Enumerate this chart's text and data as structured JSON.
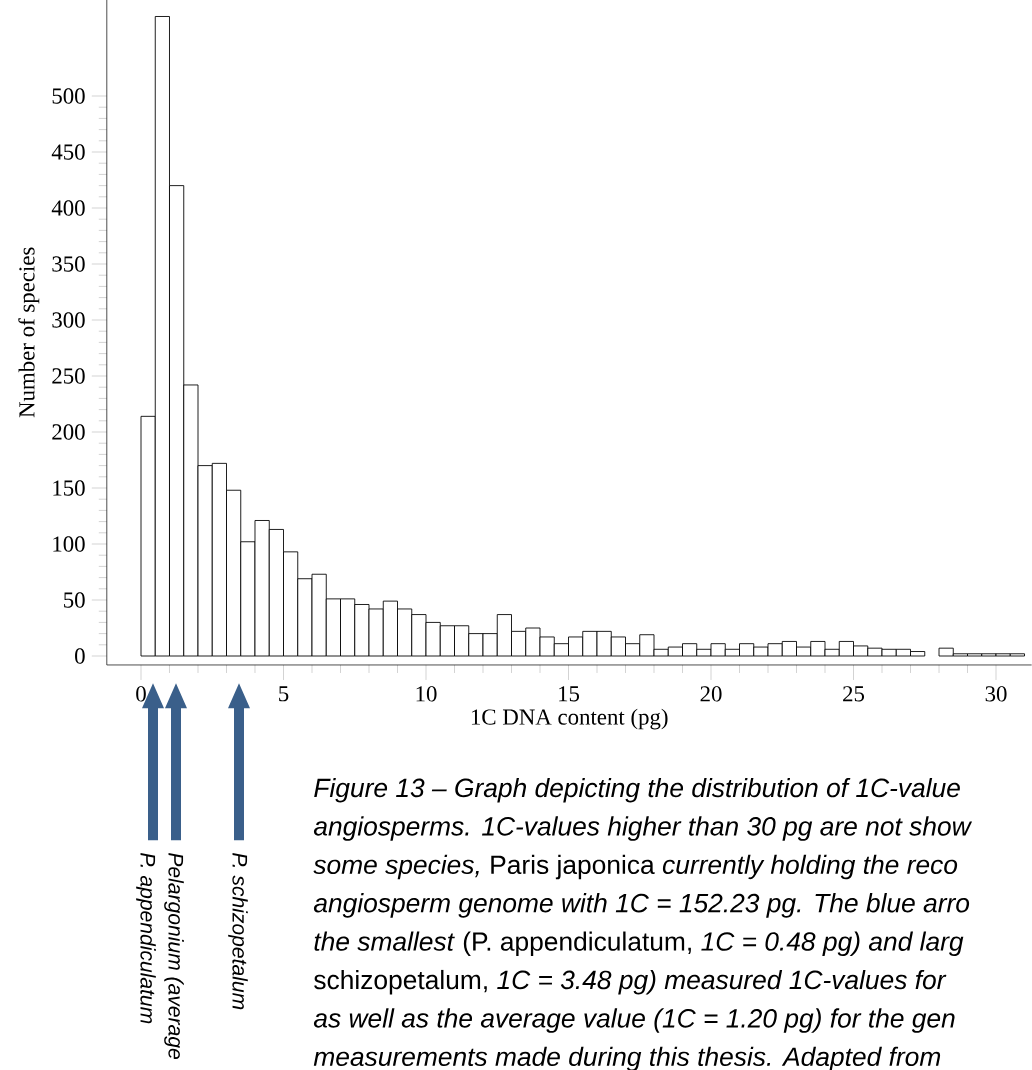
{
  "chart_data": {
    "type": "histogram",
    "xlabel": "1C DNA content (pg)",
    "ylabel": "Number of species",
    "bins": [
      0,
      0.5,
      1,
      1.5,
      2,
      2.5,
      3,
      3.5,
      4,
      4.5,
      5,
      5.5,
      6,
      6.5,
      7,
      7.5,
      8,
      8.5,
      9,
      9.5,
      10,
      10.5,
      11,
      11.5,
      12,
      12.5,
      13,
      13.5,
      14,
      14.5,
      15,
      15.5,
      16,
      16.5,
      17,
      17.5,
      18,
      18.5,
      19,
      19.5,
      20,
      20.5,
      21,
      21.5,
      22,
      22.5,
      23,
      23.5,
      24,
      24.5,
      25,
      25.5,
      26,
      26.5,
      27,
      27.5,
      28,
      28.5,
      29,
      29.5,
      30,
      30.5,
      31
    ],
    "values": [
      214,
      571,
      420,
      242,
      170,
      172,
      148,
      102,
      121,
      113,
      93,
      69,
      73,
      51,
      51,
      46,
      42,
      49,
      42,
      37,
      30,
      27,
      27,
      20,
      20,
      37,
      22,
      25,
      17,
      11,
      17,
      22,
      22,
      17,
      11,
      19,
      6,
      8,
      11,
      6,
      11,
      6,
      11,
      8,
      11,
      13,
      8,
      13,
      6,
      13,
      9,
      7,
      6,
      6,
      4,
      0,
      7,
      2,
      2,
      2,
      2,
      2
    ],
    "color": "#ffffff",
    "xlim": [
      -1.2,
      31.25
    ],
    "ylim": [
      -8,
      586
    ],
    "xticks": [
      0,
      5,
      10,
      15,
      20,
      25,
      30
    ],
    "yticks": [
      0,
      50,
      100,
      150,
      200,
      250,
      300,
      350,
      400,
      450,
      500
    ],
    "annotations": [
      "*P. appendiculatum*",
      "*Pelargonium (average*",
      "*P. schizopetalum*",
      "*Figure 13 – Graph depicting the distribution of 1C-value*",
      "*angiosperms. 1C-values higher than 30 pg are not show*",
      "*some species,* Paris japonica *currently holding the reco*",
      "*angiosperm genome with 1C = 152.23 pg. The blue arro*",
      "*the smallest* (P. appendiculatum, *1C = 0.48 pg) and larg*",
      "schizopetalum, *1C = 3.48 pg) measured 1C-values for*",
      "*as well as the average value (1C = 1.20 pg) for the gen*",
      "*measurements made during this thesis. Adapted from*"
    ]
  }
}
